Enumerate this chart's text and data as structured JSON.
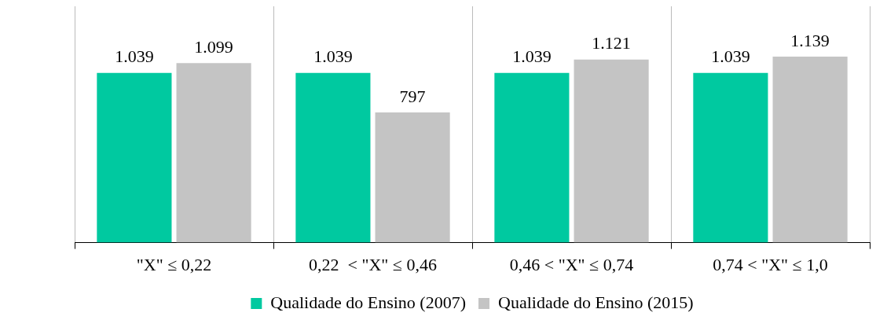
{
  "chart_data": {
    "type": "bar",
    "categories": [
      "\"X\" ≤ 0,22",
      "0,22  < \"X\" ≤ 0,46",
      "0,46 < \"X\" ≤ 0,74",
      "0,74 < \"X\" ≤ 1,0"
    ],
    "series": [
      {
        "name": "Qualidade do Ensino (2007)",
        "color": "#00c9a0",
        "values": [
          1039,
          1039,
          1039,
          1039
        ],
        "value_labels": [
          "1.039",
          "1.039",
          "1.039",
          "1.039"
        ]
      },
      {
        "name": "Qualidade do Ensino (2015)",
        "color": "#c4c4c4",
        "values": [
          1099,
          797,
          1121,
          1139
        ],
        "value_labels": [
          "1.099",
          "797",
          "1.121",
          "1.139"
        ]
      }
    ],
    "grid": "x",
    "legend": "bottom"
  }
}
